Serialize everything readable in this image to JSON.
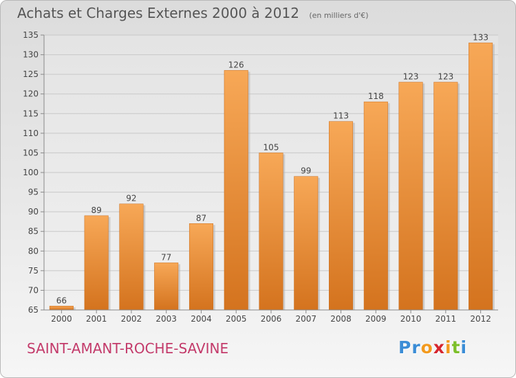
{
  "header": {
    "title": "Achats et Charges Externes 2000 à 2012",
    "unit": "(en milliers d'€)"
  },
  "footer": {
    "commune": "SAINT-AMANT-ROCHE-SAVINE",
    "logo_letters": [
      "P",
      "r",
      "o",
      "x",
      "i",
      "t",
      "i"
    ],
    "logo_colors": [
      "#3b8dd6",
      "#3b8dd6",
      "#f39a1e",
      "#d6262f",
      "#f39a1e",
      "#7cbf2a",
      "#3b8dd6"
    ]
  },
  "chart_data": {
    "type": "bar",
    "categories": [
      "2000",
      "2001",
      "2002",
      "2003",
      "2004",
      "2005",
      "2006",
      "2007",
      "2008",
      "2009",
      "2010",
      "2011",
      "2012"
    ],
    "values": [
      66,
      89,
      92,
      77,
      87,
      126,
      105,
      99,
      113,
      118,
      123,
      123,
      133
    ],
    "ylim": [
      65,
      135
    ],
    "yticks": [
      65,
      70,
      75,
      80,
      85,
      90,
      95,
      100,
      105,
      110,
      115,
      120,
      125,
      130,
      135
    ],
    "grid": true,
    "bar_color_top": "#f7a857",
    "bar_color_bottom": "#d4731e"
  }
}
